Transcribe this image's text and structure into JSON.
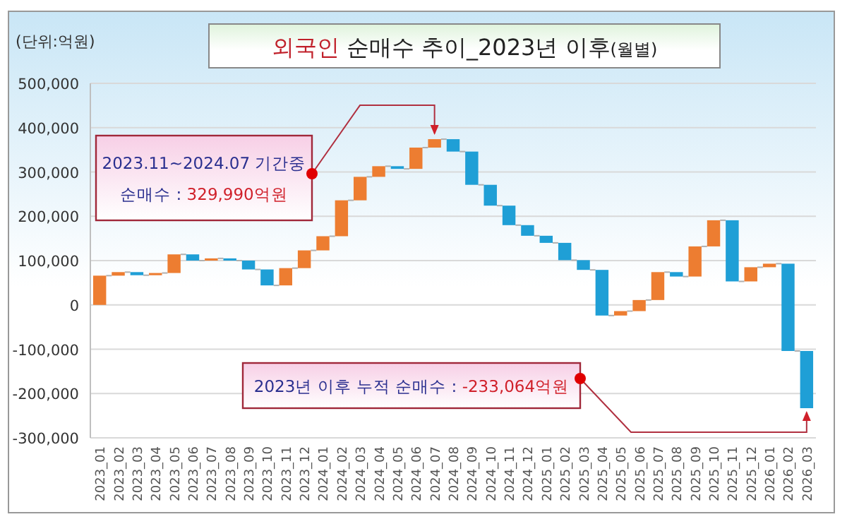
{
  "chart_data": {
    "type": "bar",
    "title": "외국인 순매수 추이_2023년 이후(월별)",
    "categories": [
      "2023_01",
      "2023_02",
      "2023_03",
      "2023_04",
      "2023_05",
      "2023_06",
      "2023_07",
      "2023_08",
      "2023_09",
      "2023_10",
      "2023_11",
      "2023_12",
      "2024_01",
      "2024_02",
      "2024_03",
      "2024_04",
      "2024_05",
      "2024_06",
      "2024_07",
      "2024_08",
      "2024_09",
      "2024_10",
      "2024_11",
      "2024_12",
      "2025_01",
      "2025_02",
      "2025_03",
      "2025_04",
      "2025_05",
      "2025_06",
      "2025_07",
      "2025_08",
      "2025_09",
      "2025_10",
      "2025_11",
      "2025_12",
      "2026_01",
      "2026_02",
      "2026_03"
    ],
    "base": [
      0,
      66000,
      74000,
      67000,
      72000,
      114000,
      100000,
      105000,
      100000,
      80000,
      44000,
      83000,
      123000,
      155000,
      236000,
      289000,
      313000,
      307000,
      355000,
      374000,
      346000,
      271000,
      224000,
      180000,
      156000,
      140000,
      101000,
      79000,
      -24000,
      -14000,
      11000,
      74000,
      64000,
      132000,
      191000,
      53000,
      85000,
      93000,
      -104000
    ],
    "values": [
      66000,
      8000,
      -7000,
      5000,
      42000,
      -14000,
      5000,
      -5000,
      -20000,
      -36000,
      39000,
      40000,
      32000,
      81000,
      53000,
      24000,
      -6000,
      48000,
      19000,
      -28000,
      -75000,
      -47000,
      -44000,
      -24000,
      -16000,
      -39000,
      -22000,
      -103000,
      10000,
      25000,
      63000,
      -10000,
      68000,
      59000,
      -138000,
      32000,
      8000,
      -197000,
      -129064
    ],
    "colors": [
      "#ed7d31",
      "#ed7d31",
      "#1f9fd6",
      "#ed7d31",
      "#ed7d31",
      "#1f9fd6",
      "#ed7d31",
      "#1f9fd6",
      "#1f9fd6",
      "#1f9fd6",
      "#ed7d31",
      "#ed7d31",
      "#ed7d31",
      "#ed7d31",
      "#ed7d31",
      "#ed7d31",
      "#1f9fd6",
      "#ed7d31",
      "#ed7d31",
      "#1f9fd6",
      "#1f9fd6",
      "#1f9fd6",
      "#1f9fd6",
      "#1f9fd6",
      "#1f9fd6",
      "#1f9fd6",
      "#1f9fd6",
      "#1f9fd6",
      "#ed7d31",
      "#ed7d31",
      "#ed7d31",
      "#1f9fd6",
      "#ed7d31",
      "#ed7d31",
      "#1f9fd6",
      "#ed7d31",
      "#ed7d31",
      "#1f9fd6",
      "#1f9fd6"
    ],
    "ylim": [
      -300000,
      500000
    ],
    "yticks": [
      {
        "value": -300000,
        "label": "-300,000"
      },
      {
        "value": -200000,
        "label": "-200,000"
      },
      {
        "value": -100000,
        "label": "-100,000"
      },
      0,
      {
        "value": 100000,
        "label": "100,000"
      },
      {
        "value": 200000,
        "label": "200,000"
      },
      {
        "value": 300000,
        "label": "300,000"
      },
      {
        "value": 400000,
        "label": "400,000"
      },
      {
        "value": 500000,
        "label": "500,000"
      }
    ],
    "grid": "y",
    "annotations": [
      "(단위:억원)",
      {
        "text": "2023.11~2024.07 기간중\n순매수 : 329,990억원",
        "x": "2024_07",
        "y": 374000
      },
      {
        "text": "2023년 이후 누적 순매수 : -233,064억원",
        "x": "2026_03",
        "y": -233064
      }
    ]
  }
}
